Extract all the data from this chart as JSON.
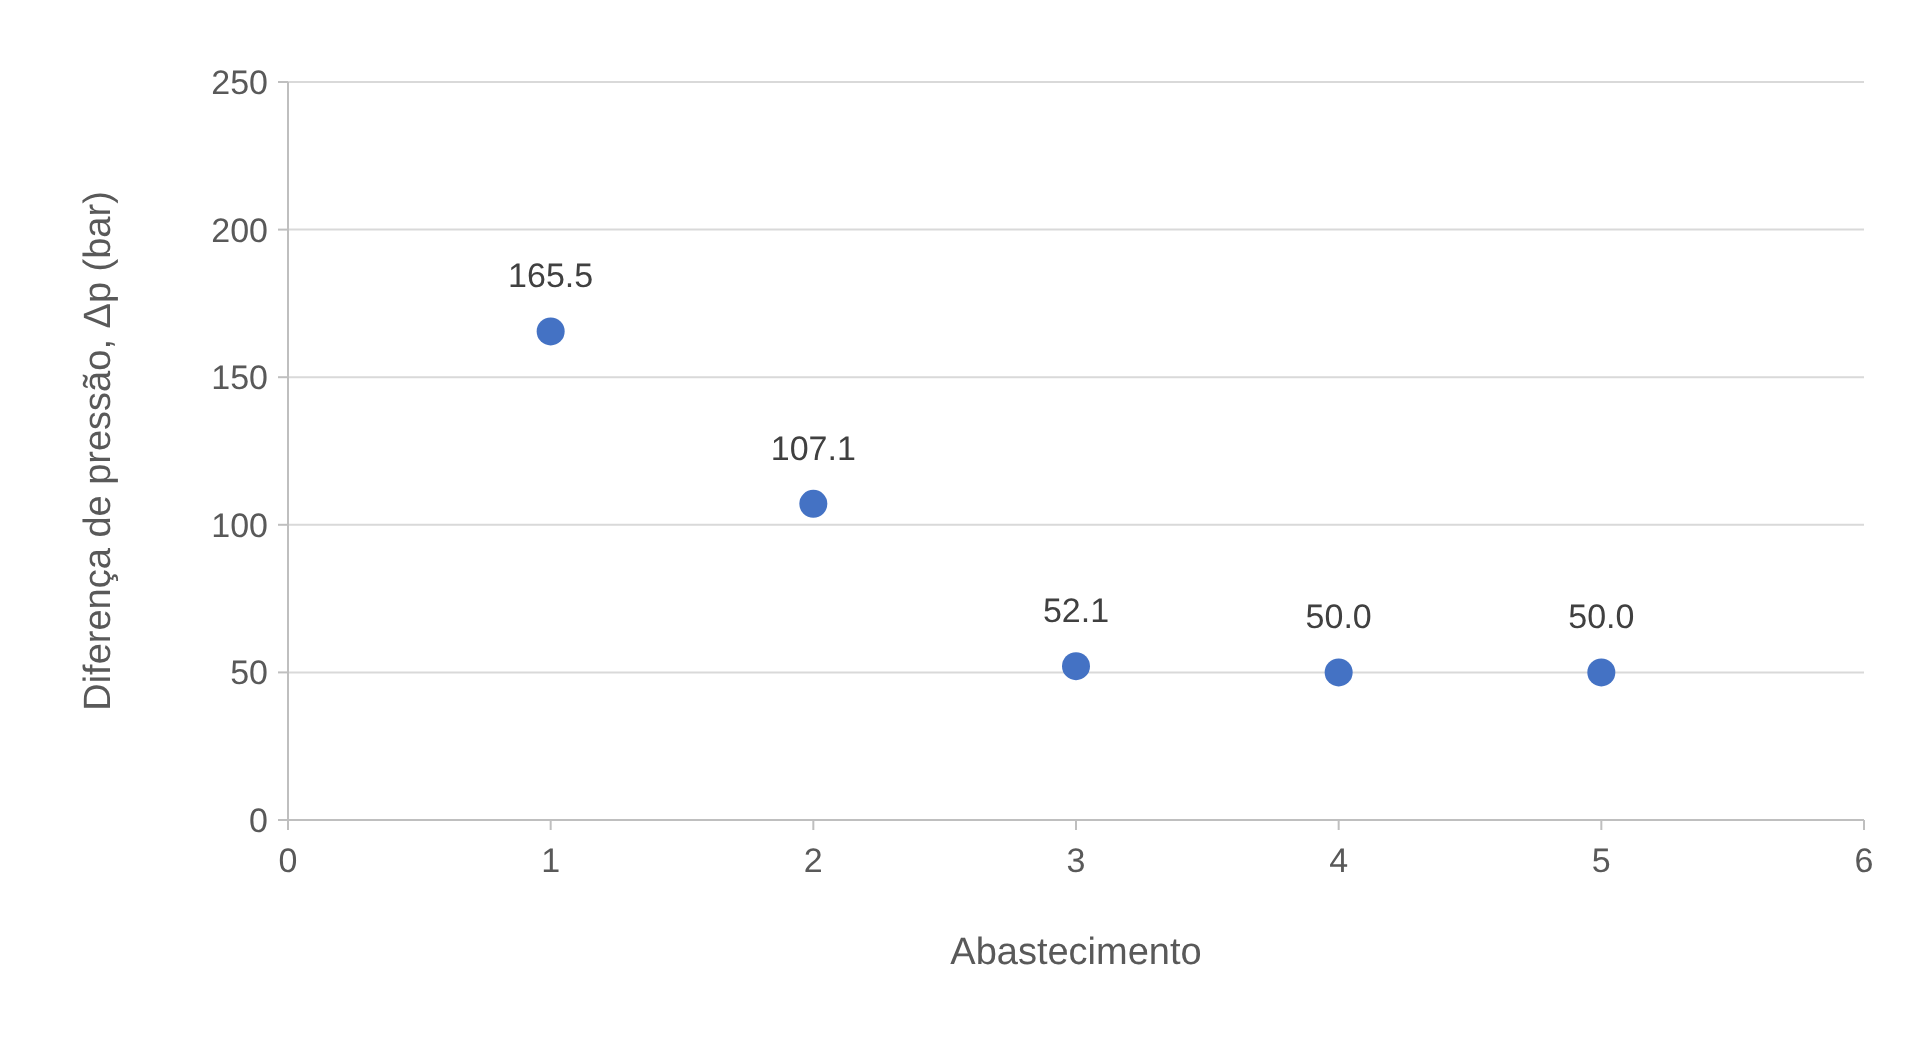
{
  "chart_data": {
    "type": "scatter",
    "xlabel": "Abastecimento",
    "ylabel": "Diferença de pressão, Δp (bar)",
    "x": [
      1,
      2,
      3,
      4,
      5
    ],
    "values": [
      165.5,
      107.1,
      52.1,
      50.0,
      50.0
    ],
    "value_labels": [
      "165.5",
      "107.1",
      "52.1",
      "50.0",
      "50.0"
    ],
    "color": "#4472c4",
    "marker": "circle",
    "xlim": [
      0,
      6
    ],
    "xticks": [
      0,
      1,
      2,
      3,
      4,
      5,
      6
    ],
    "ylim": [
      0,
      250
    ],
    "yticks": [
      0,
      50,
      100,
      150,
      200,
      250
    ],
    "grid": "y"
  }
}
